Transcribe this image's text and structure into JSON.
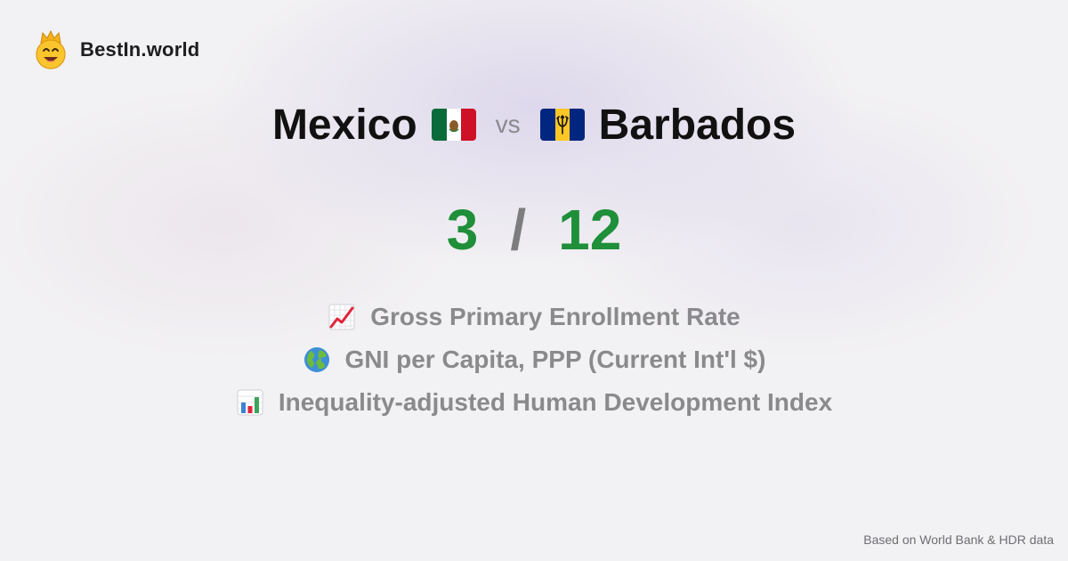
{
  "brand": {
    "name": "BestIn.world",
    "logo_icon": "smiling-crown-face-icon"
  },
  "comparison": {
    "country_a": {
      "name": "Mexico",
      "flag_icon": "mexico-flag-icon"
    },
    "separator": "vs",
    "country_b": {
      "name": "Barbados",
      "flag_icon": "barbados-flag-icon"
    }
  },
  "score": {
    "a": "3",
    "separator": "/",
    "b": "12"
  },
  "metrics": [
    {
      "icon": "chart-increasing-icon",
      "label": "Gross Primary Enrollment Rate"
    },
    {
      "icon": "globe-icon",
      "label": "GNI per Capita, PPP (Current Int'l $)"
    },
    {
      "icon": "bar-chart-icon",
      "label": "Inequality-adjusted Human Development Index"
    }
  ],
  "footer": {
    "source": "Based on World Bank & HDR data"
  },
  "colors": {
    "score": "#1f8f3a",
    "muted": "#8a8a8d",
    "text": "#111111",
    "background": "#f2f1f3"
  }
}
